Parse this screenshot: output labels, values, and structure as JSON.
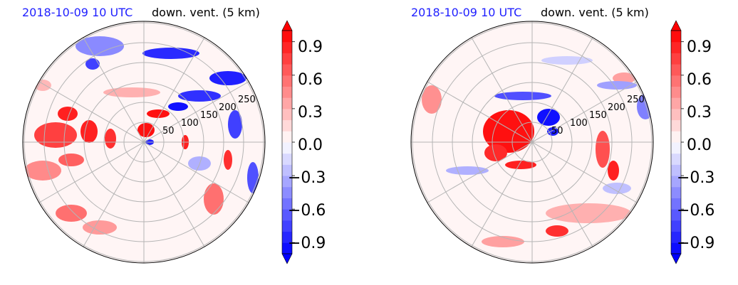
{
  "chart_data": [
    {
      "type": "heatmap",
      "subtitle": "2018-10-09 10 UTC",
      "title": "down. vent. (5 km)",
      "radial_ticks": [
        "50",
        "100",
        "150",
        "200",
        "250"
      ],
      "colorbar": {
        "range": [
          -1.0,
          1.0
        ],
        "ticks": [
          "0.9",
          "0.6",
          "0.3",
          "0.0",
          "−0.3",
          "−0.6",
          "−0.9"
        ],
        "tick_values": [
          0.9,
          0.6,
          0.3,
          0.0,
          -0.3,
          -0.6,
          -0.9
        ],
        "colormap": "bwr",
        "extend": "both"
      },
      "grid": true
    },
    {
      "type": "heatmap",
      "subtitle": "2018-10-09 10 UTC",
      "title": "down. vent. (5 km)",
      "radial_ticks": [
        "50",
        "100",
        "150",
        "200",
        "250"
      ],
      "colorbar": {
        "range": [
          -1.0,
          1.0
        ],
        "ticks": [
          "0.9",
          "0.6",
          "0.3",
          "0.0",
          "−0.3",
          "−0.6",
          "−0.9"
        ],
        "tick_values": [
          0.9,
          0.6,
          0.3,
          0.0,
          -0.3,
          -0.6,
          -0.9
        ],
        "colormap": "bwr",
        "extend": "both"
      },
      "grid": true
    }
  ]
}
